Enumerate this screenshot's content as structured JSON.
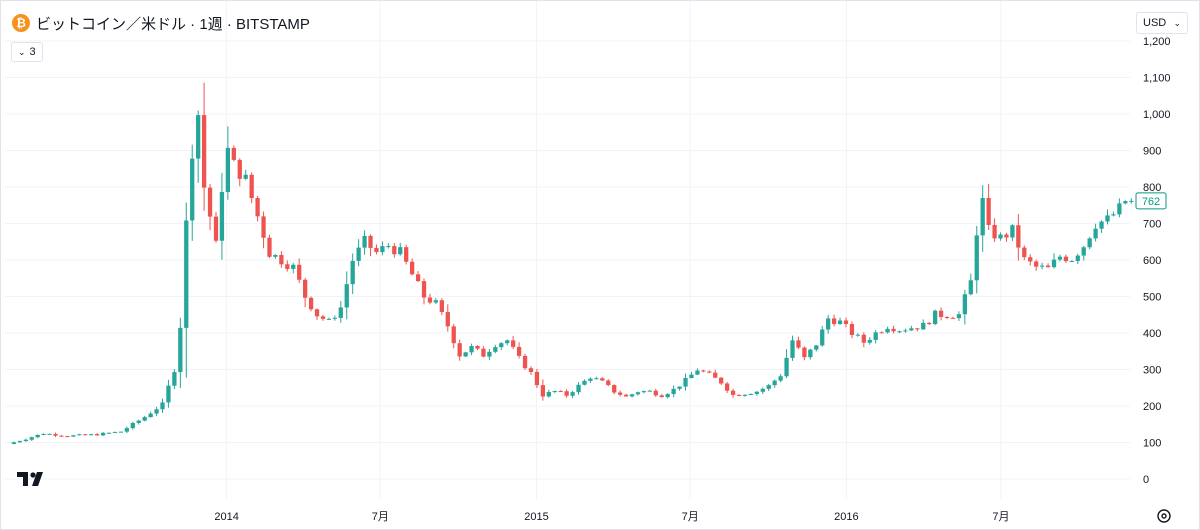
{
  "header": {
    "title": "ビットコイン／米ドル · 1週 · BITSTAMP",
    "coin_symbol": "₿",
    "indicator_count": "3"
  },
  "toolbar": {
    "currency": "USD"
  },
  "colors": {
    "up": "#26a69a",
    "down": "#ef5350",
    "grid": "#f0f3fa",
    "last_price": "#089981"
  },
  "icons": {
    "coin": "bitcoin-icon",
    "collapse": "chevron-down-icon",
    "currency": "chevron-down-icon",
    "logo": "tradingview-logo",
    "settings": "settings-icon"
  },
  "chart_data": {
    "type": "candlestick",
    "title": "",
    "xlabel": "",
    "ylabel": "",
    "interval": "1 week",
    "ylim": [
      0,
      1200
    ],
    "y_ticks": [
      0,
      100,
      200,
      300,
      400,
      500,
      600,
      700,
      800,
      900,
      1000,
      1100,
      1200
    ],
    "y_tick_labels": [
      "0",
      "100",
      "200",
      "300",
      "400",
      "500",
      "600",
      "700",
      "800",
      "900",
      "1,000",
      "1,100",
      "1,200"
    ],
    "x_ticks": [
      {
        "label": "2014",
        "date": "2014-01-01"
      },
      {
        "label": "7月",
        "date": "2014-07-01"
      },
      {
        "label": "2015",
        "date": "2015-01-01"
      },
      {
        "label": "7月",
        "date": "2015-07-01"
      },
      {
        "label": "2016",
        "date": "2016-01-01"
      },
      {
        "label": "7月",
        "date": "2016-07-01"
      }
    ],
    "x_range": [
      "2013-04-15",
      "2016-11-30"
    ],
    "last_price": 762,
    "last_price_label": "762",
    "grid": true,
    "trend_points": [
      [
        "2013-04-22",
        96
      ],
      [
        "2013-05-13",
        110
      ],
      [
        "2013-06-03",
        125
      ],
      [
        "2013-07-01",
        118
      ],
      [
        "2013-08-05",
        122
      ],
      [
        "2013-09-02",
        130
      ],
      [
        "2013-09-30",
        170
      ],
      [
        "2013-10-21",
        205
      ],
      [
        "2013-11-04",
        300
      ],
      [
        "2013-11-11",
        420
      ],
      [
        "2013-11-18",
        700
      ],
      [
        "2013-11-25",
        900
      ],
      [
        "2013-12-02",
        1000
      ],
      [
        "2013-12-09",
        800
      ],
      [
        "2013-12-16",
        720
      ],
      [
        "2013-12-23",
        640
      ],
      [
        "2013-12-30",
        800
      ],
      [
        "2014-01-06",
        900
      ],
      [
        "2014-01-13",
        860
      ],
      [
        "2014-01-27",
        820
      ],
      [
        "2014-02-10",
        720
      ],
      [
        "2014-02-24",
        620
      ],
      [
        "2014-03-10",
        600
      ],
      [
        "2014-03-24",
        580
      ],
      [
        "2014-04-07",
        500
      ],
      [
        "2014-04-21",
        450
      ],
      [
        "2014-05-05",
        430
      ],
      [
        "2014-05-19",
        470
      ],
      [
        "2014-06-02",
        600
      ],
      [
        "2014-06-16",
        650
      ],
      [
        "2014-06-30",
        620
      ],
      [
        "2014-07-14",
        640
      ],
      [
        "2014-07-28",
        620
      ],
      [
        "2014-08-11",
        560
      ],
      [
        "2014-08-25",
        500
      ],
      [
        "2014-09-08",
        480
      ],
      [
        "2014-09-22",
        420
      ],
      [
        "2014-10-06",
        340
      ],
      [
        "2014-10-20",
        360
      ],
      [
        "2014-11-03",
        340
      ],
      [
        "2014-11-17",
        370
      ],
      [
        "2014-12-01",
        380
      ],
      [
        "2014-12-15",
        330
      ],
      [
        "2014-12-29",
        290
      ],
      [
        "2015-01-12",
        230
      ],
      [
        "2015-01-26",
        240
      ],
      [
        "2015-02-09",
        230
      ],
      [
        "2015-02-23",
        255
      ],
      [
        "2015-03-09",
        280
      ],
      [
        "2015-03-23",
        265
      ],
      [
        "2015-04-06",
        240
      ],
      [
        "2015-04-20",
        225
      ],
      [
        "2015-05-04",
        240
      ],
      [
        "2015-05-18",
        240
      ],
      [
        "2015-06-01",
        230
      ],
      [
        "2015-06-15",
        245
      ],
      [
        "2015-06-29",
        270
      ],
      [
        "2015-07-13",
        300
      ],
      [
        "2015-07-27",
        285
      ],
      [
        "2015-08-10",
        265
      ],
      [
        "2015-08-24",
        230
      ],
      [
        "2015-09-07",
        235
      ],
      [
        "2015-09-21",
        240
      ],
      [
        "2015-10-05",
        255
      ],
      [
        "2015-10-19",
        285
      ],
      [
        "2015-11-02",
        380
      ],
      [
        "2015-11-16",
        330
      ],
      [
        "2015-11-30",
        370
      ],
      [
        "2015-12-14",
        440
      ],
      [
        "2015-12-28",
        430
      ],
      [
        "2016-01-11",
        400
      ],
      [
        "2016-01-25",
        375
      ],
      [
        "2016-02-08",
        400
      ],
      [
        "2016-02-22",
        420
      ],
      [
        "2016-03-07",
        410
      ],
      [
        "2016-03-21",
        415
      ],
      [
        "2016-04-04",
        420
      ],
      [
        "2016-04-18",
        450
      ],
      [
        "2016-05-02",
        450
      ],
      [
        "2016-05-16",
        450
      ],
      [
        "2016-05-30",
        540
      ],
      [
        "2016-06-06",
        680
      ],
      [
        "2016-06-13",
        760
      ],
      [
        "2016-06-20",
        680
      ],
      [
        "2016-07-04",
        660
      ],
      [
        "2016-07-18",
        680
      ],
      [
        "2016-08-01",
        600
      ],
      [
        "2016-08-15",
        580
      ],
      [
        "2016-08-29",
        575
      ],
      [
        "2016-09-12",
        610
      ],
      [
        "2016-09-26",
        605
      ],
      [
        "2016-10-10",
        640
      ],
      [
        "2016-10-24",
        700
      ],
      [
        "2016-11-07",
        710
      ],
      [
        "2016-11-21",
        740
      ],
      [
        "2016-11-28",
        762
      ]
    ]
  }
}
